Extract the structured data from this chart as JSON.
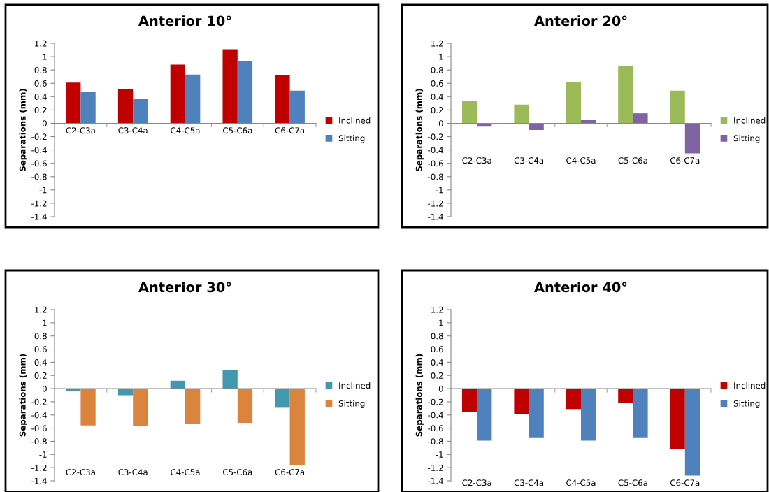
{
  "chart_data": [
    {
      "type": "bar",
      "title": "Anterior 10°",
      "ylabel": "Separations (mm)",
      "categories": [
        "C2-C3a",
        "C3-C4a",
        "C4-C5a",
        "C5-C6a",
        "C6-C7a"
      ],
      "series": [
        {
          "name": "Inclined",
          "color": "#c00000",
          "values": [
            0.61,
            0.51,
            0.88,
            1.11,
            0.72
          ]
        },
        {
          "name": "Sitting",
          "color": "#4f81bd",
          "values": [
            0.47,
            0.37,
            0.73,
            0.93,
            0.49
          ]
        }
      ],
      "ylim": [
        -1.4,
        1.2
      ],
      "yticks": [
        -1.4,
        -1.2,
        -1,
        -0.8,
        -0.6,
        -0.4,
        -0.2,
        0,
        0.2,
        0.4,
        0.6,
        0.8,
        1,
        1.2
      ],
      "legend": "right"
    },
    {
      "type": "bar",
      "title": "Anterior 20°",
      "ylabel": "Separations (mm)",
      "categories": [
        "C2-C3a",
        "C3-C4a",
        "C4-C5a",
        "C5-C6a",
        "C6-C7a"
      ],
      "series": [
        {
          "name": "Inclined",
          "color": "#9bbb59",
          "values": [
            0.34,
            0.28,
            0.62,
            0.86,
            0.49
          ]
        },
        {
          "name": "Sitting",
          "color": "#8064a2",
          "values": [
            -0.05,
            -0.1,
            0.05,
            0.15,
            -0.45
          ]
        }
      ],
      "ylim": [
        -1.4,
        1.2
      ],
      "yticks": [
        -1.4,
        -1.2,
        -1,
        -0.8,
        -0.6,
        -0.4,
        -0.2,
        0,
        0.2,
        0.4,
        0.6,
        0.8,
        1,
        1.2
      ],
      "legend": "right"
    },
    {
      "type": "bar",
      "title": "Anterior 30°",
      "ylabel": "Separations (mm)",
      "categories": [
        "C2-C3a",
        "C3-C4a",
        "C4-C5a",
        "C5-C6a",
        "C6-C7a"
      ],
      "series": [
        {
          "name": "Inclined",
          "color": "#4198af",
          "values": [
            -0.04,
            -0.1,
            0.12,
            0.28,
            -0.29
          ]
        },
        {
          "name": "Sitting",
          "color": "#db843d",
          "values": [
            -0.56,
            -0.57,
            -0.54,
            -0.52,
            -1.16
          ]
        }
      ],
      "ylim": [
        -1.4,
        1.2
      ],
      "yticks": [
        -1.4,
        -1.2,
        -1,
        -0.8,
        -0.6,
        -0.4,
        -0.2,
        0,
        0.2,
        0.4,
        0.6,
        0.8,
        1,
        1.2
      ],
      "legend": "right"
    },
    {
      "type": "bar",
      "title": "Anterior 40°",
      "ylabel": "Separations (mm)",
      "categories": [
        "C2-C3a",
        "C3-C4a",
        "C4-C5a",
        "C5-C6a",
        "C6-C7a"
      ],
      "series": [
        {
          "name": "Inclined",
          "color": "#c00000",
          "values": [
            -0.35,
            -0.39,
            -0.31,
            -0.22,
            -0.92
          ]
        },
        {
          "name": "Sitting",
          "color": "#4f81bd",
          "values": [
            -0.79,
            -0.75,
            -0.79,
            -0.75,
            -1.32
          ]
        }
      ],
      "ylim": [
        -1.4,
        1.2
      ],
      "yticks": [
        -1.4,
        -1.2,
        -1,
        -0.8,
        -0.6,
        -0.4,
        -0.2,
        0,
        0.2,
        0.4,
        0.6,
        0.8,
        1,
        1.2
      ],
      "legend": "right"
    }
  ]
}
